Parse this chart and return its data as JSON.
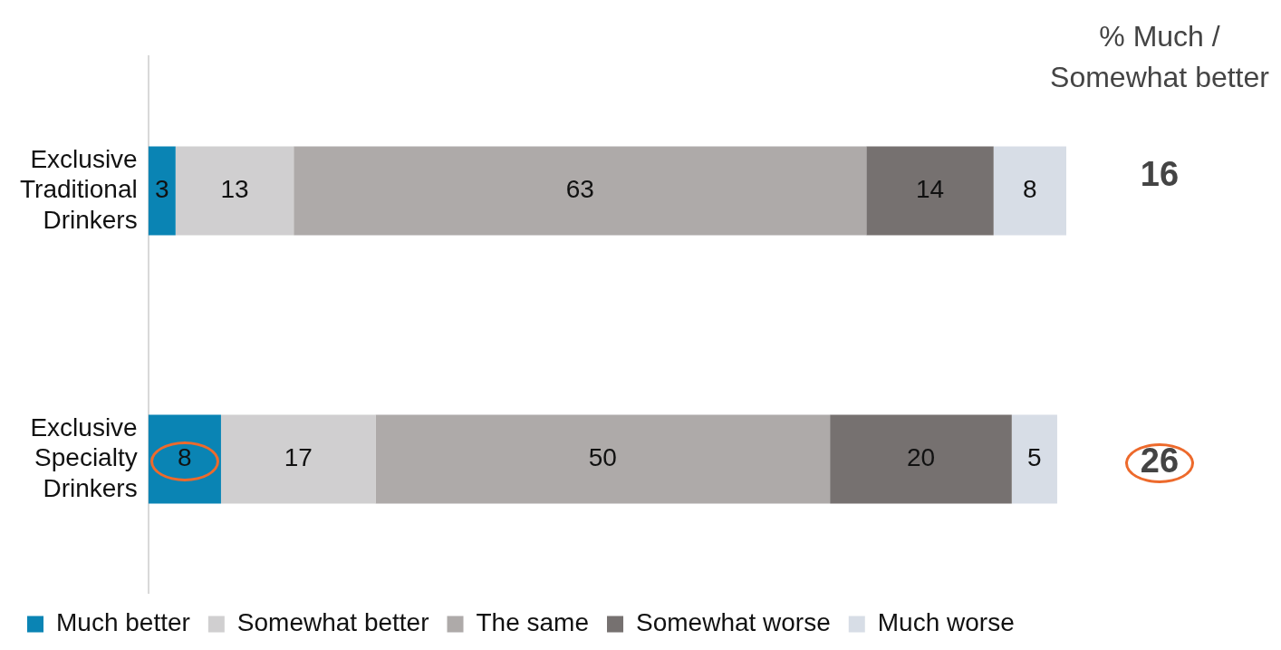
{
  "chart_data": {
    "type": "bar",
    "orientation": "horizontal",
    "stacked": true,
    "data_labels": true,
    "grid": false,
    "legend": "bottom",
    "categories": [
      "Exclusive Traditional Drinkers",
      "Exclusive Specialty Drinkers"
    ],
    "series": [
      {
        "name": "Much better",
        "color": "#0a84b4",
        "values": [
          3,
          8
        ]
      },
      {
        "name": "Somewhat better",
        "color": "#d0cfd0",
        "values": [
          13,
          17
        ]
      },
      {
        "name": "The same",
        "color": "#aeaaa9",
        "values": [
          63,
          50
        ]
      },
      {
        "name": "Somewhat worse",
        "color": "#767170",
        "values": [
          14,
          20
        ]
      },
      {
        "name": "Much worse",
        "color": "#d7dde6",
        "values": [
          8,
          5
        ]
      }
    ],
    "annotations": [
      "% Much / Somewhat better",
      "16",
      "26"
    ]
  }
}
